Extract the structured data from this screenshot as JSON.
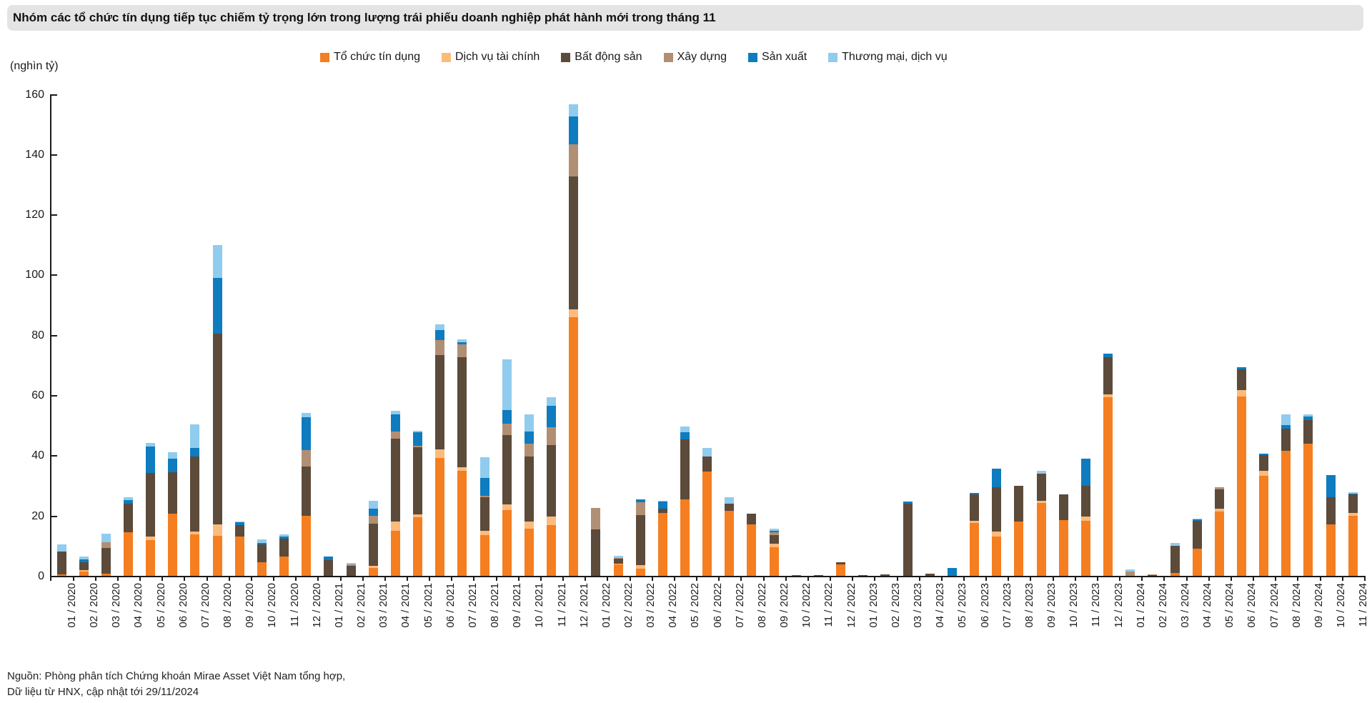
{
  "title": "Nhóm các tổ chức tín dụng tiếp tục chiếm tỷ trọng lớn trong lượng trái phiếu doanh nghiệp phát hành mới trong tháng 11",
  "unit_label": "(nghìn tỷ)",
  "source": {
    "line1": "Nguồn: Phòng phân tích Chứng khoán Mirae Asset Việt Nam tổng hợp,",
    "line2": "Dữ liệu từ HNX, cập nhật tới 29/11/2024"
  },
  "colors": {
    "axis": "#1a1a1a",
    "title_bg": "#e4e4e4"
  },
  "chart_data": {
    "type": "bar",
    "stacked": true,
    "title": "Nhóm các tổ chức tín dụng tiếp tục chiếm tỷ trọng lớn trong lượng trái phiếu doanh nghiệp phát hành mới trong tháng 11",
    "ylabel": "(nghìn tỷ)",
    "ylim": [
      0,
      160
    ],
    "yticks": [
      0,
      20,
      40,
      60,
      80,
      100,
      120,
      140,
      160
    ],
    "grid": false,
    "legend_position": "top",
    "categories": [
      "01 / 2020",
      "02 / 2020",
      "03 / 2020",
      "04 / 2020",
      "05 / 2020",
      "06 / 2020",
      "07 / 2020",
      "08 / 2020",
      "09 / 2020",
      "10 / 2020",
      "11 / 2020",
      "12 / 2020",
      "01 / 2021",
      "02 / 2021",
      "03 / 2021",
      "04 / 2021",
      "05 / 2021",
      "06 / 2021",
      "07 / 2021",
      "08 / 2021",
      "09 / 2021",
      "10 / 2021",
      "11 / 2021",
      "12 / 2021",
      "01 / 2022",
      "02 / 2022",
      "03 / 2022",
      "04 / 2022",
      "05 / 2022",
      "06 / 2022",
      "07 / 2022",
      "08 / 2022",
      "09 / 2022",
      "10 / 2022",
      "11 / 2022",
      "12 / 2022",
      "01 / 2023",
      "02 / 2023",
      "03 / 2023",
      "04 / 2023",
      "05 / 2023",
      "06 / 2023",
      "07 / 2023",
      "08 / 2023",
      "09 / 2023",
      "10 / 2023",
      "11 / 2023",
      "12 / 2023",
      "01 / 2024",
      "02 / 2024",
      "03 / 2024",
      "04 / 2024",
      "05 / 2024",
      "06 / 2024",
      "07 / 2024",
      "08 / 2024",
      "09 / 2024",
      "10 / 2024",
      "11 / 2024"
    ],
    "series": [
      {
        "name": "Tổ chức tín dụng",
        "color": "#F57E20",
        "values": [
          0.4,
          1.4,
          0.8,
          14.5,
          11.9,
          20.7,
          13.8,
          13.3,
          13.0,
          4.4,
          6.5,
          20.0,
          0,
          0,
          2.5,
          14.9,
          19.4,
          39.2,
          34.9,
          13.5,
          21.8,
          15.7,
          16.9,
          85.8,
          0,
          3.8,
          2.4,
          20.9,
          25.4,
          34.6,
          21.5,
          17.0,
          9.6,
          0,
          0,
          3.9,
          0,
          0,
          0,
          0,
          0,
          17.5,
          13.0,
          18.1,
          24.3,
          18.6,
          18.3,
          59.3,
          0,
          0,
          1.0,
          8.9,
          21.3,
          59.6,
          33.2,
          41.6,
          43.8,
          17.0,
          20.0
        ]
      },
      {
        "name": "Dịch vụ tài chính",
        "color": "#FBBB7C",
        "values": [
          0,
          0.4,
          0,
          0,
          1.1,
          0,
          0.9,
          3.7,
          0,
          0,
          0,
          0,
          0,
          0,
          0.8,
          3.1,
          1.1,
          2.8,
          1.1,
          1.5,
          1.9,
          2.3,
          2.7,
          2.7,
          0,
          0.3,
          1.2,
          0,
          0,
          0,
          0,
          0,
          1.0,
          0,
          0,
          0,
          0,
          0,
          0,
          0,
          0,
          0.8,
          1.8,
          0,
          0.6,
          0,
          1.3,
          1.0,
          0,
          0,
          0,
          0,
          1.1,
          2.0,
          1.6,
          0,
          0,
          0,
          0.8
        ]
      },
      {
        "name": "Bất động sản",
        "color": "#5C4A3B",
        "values": [
          7.6,
          2.6,
          8.4,
          9.4,
          21.1,
          13.7,
          25.0,
          63.5,
          3.8,
          6.0,
          5.9,
          16.3,
          5.3,
          3.4,
          14.0,
          27.5,
          22.2,
          31.3,
          36.5,
          11.0,
          23.0,
          21.6,
          23.9,
          44.2,
          15.4,
          1.6,
          16.5,
          1.4,
          19.8,
          5.1,
          2.4,
          3.7,
          3.0,
          0,
          0.3,
          0.6,
          0.2,
          0.4,
          23.9,
          0.8,
          0,
          8.7,
          14.6,
          11.7,
          9.1,
          8.4,
          10.2,
          12.2,
          0,
          0.2,
          9.0,
          9.3,
          6.4,
          6.9,
          5.3,
          7.3,
          7.8,
          9.1,
          6.2
        ]
      },
      {
        "name": "Xây dựng",
        "color": "#B18F74",
        "values": [
          0,
          0,
          1.9,
          0,
          0,
          0,
          0,
          0,
          0,
          0,
          0,
          5.4,
          0,
          0.5,
          2.7,
          2.5,
          0.4,
          4.9,
          4.4,
          0.6,
          3.9,
          4.3,
          5.9,
          10.6,
          7.1,
          0.3,
          4.4,
          0,
          0,
          0,
          0,
          0,
          0.8,
          0,
          0,
          0,
          0,
          0,
          0,
          0,
          0,
          0,
          0,
          0,
          0,
          0,
          0,
          0,
          1.4,
          0.3,
          0,
          0,
          0.5,
          0,
          0,
          0,
          0,
          0,
          0
        ]
      },
      {
        "name": "Sản xuất",
        "color": "#0E7CBE",
        "values": [
          0,
          1.1,
          0,
          1.2,
          8.8,
          4.5,
          2.7,
          18.3,
          1.0,
          0.6,
          0.6,
          11.0,
          1.2,
          0,
          2.4,
          5.5,
          4.6,
          3.4,
          0.6,
          5.9,
          4.5,
          3.9,
          7.1,
          9.3,
          0,
          0,
          0.9,
          2.3,
          2.4,
          0,
          0,
          0,
          0.6,
          0.3,
          0,
          0,
          0,
          0,
          0.7,
          0,
          2.7,
          0.6,
          6.1,
          0,
          0,
          0,
          9.0,
          1.2,
          0,
          0,
          0,
          0.5,
          0,
          0.8,
          0.4,
          1.1,
          1.4,
          7.4,
          0.3
        ]
      },
      {
        "name": "Thương mại, dịch vụ",
        "color": "#90CCEE",
        "values": [
          2.5,
          1.0,
          2.9,
          0.9,
          1.3,
          2.1,
          8.0,
          11.1,
          0.3,
          1.0,
          0.7,
          1.5,
          0,
          0.3,
          2.5,
          1.4,
          0.4,
          1.9,
          1.1,
          6.9,
          16.7,
          5.9,
          2.9,
          4.0,
          0,
          0.6,
          0,
          0.2,
          2.0,
          2.8,
          2.3,
          0,
          0.6,
          0,
          0,
          0,
          0,
          0,
          0,
          0,
          0,
          0,
          0,
          0,
          0.8,
          0,
          0,
          0,
          0.7,
          0,
          0.8,
          0.3,
          0,
          0,
          0,
          3.7,
          0.5,
          0,
          0.5
        ]
      }
    ]
  }
}
